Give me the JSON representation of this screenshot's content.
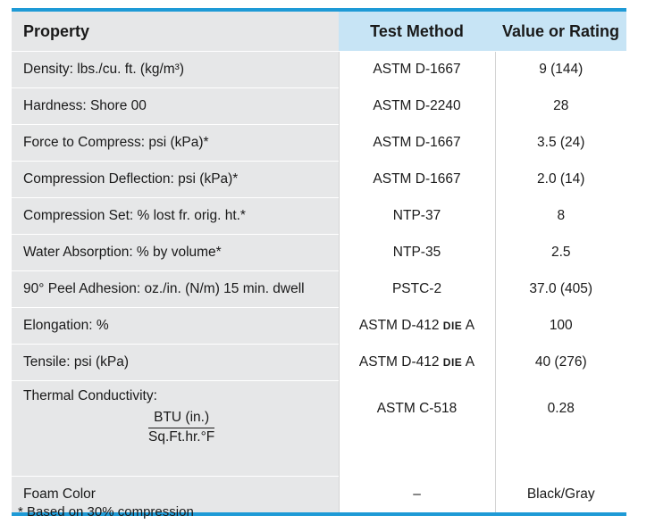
{
  "table": {
    "headers": {
      "property": "Property",
      "method": "Test Method",
      "value": "Value or Rating"
    },
    "rows": [
      {
        "property": "Density: lbs./cu. ft. (kg/m³)",
        "method": "ASTM D-1667",
        "value": "9 (144)"
      },
      {
        "property": "Hardness: Shore 00",
        "method": "ASTM D-2240",
        "value": "28"
      },
      {
        "property": "Force to Compress: psi (kPa)*",
        "method": "ASTM D-1667",
        "value": "3.5 (24)"
      },
      {
        "property": "Compression Deflection: psi (kPa)*",
        "method": "ASTM D-1667",
        "value": "2.0 (14)"
      },
      {
        "property": "Compression Set: % lost fr. orig. ht.*",
        "method": "NTP-37",
        "value": "8"
      },
      {
        "property": "Water Absorption: % by volume*",
        "method": "NTP-35",
        "value": "2.5"
      },
      {
        "property": "90° Peel Adhesion: oz./in. (N/m) 15 min. dwell",
        "method": "PSTC-2",
        "value": "37.0 (405)"
      },
      {
        "property": "Elongation: %",
        "method_prefix": "ASTM D-412",
        "method_sc": "DIE",
        "method_suffix": "A",
        "value": "100"
      },
      {
        "property": "Tensile: psi (kPa)",
        "method_prefix": "ASTM D-412",
        "method_sc": "DIE",
        "method_suffix": "A",
        "value": "40 (276)"
      },
      {
        "property": "Thermal Conductivity:",
        "fraction_numerator": "BTU (in.)",
        "fraction_denominator": "Sq.Ft.hr.°F",
        "method": "ASTM C-518",
        "value": "0.28"
      },
      {
        "property": "Foam Color",
        "method": "–",
        "value": "Black/Gray"
      }
    ]
  },
  "footnote": "* Based on 30% compression",
  "colors": {
    "accent": "#1e9ad6",
    "header_blue": "#c7e4f5",
    "property_gray": "#e6e7e8"
  }
}
